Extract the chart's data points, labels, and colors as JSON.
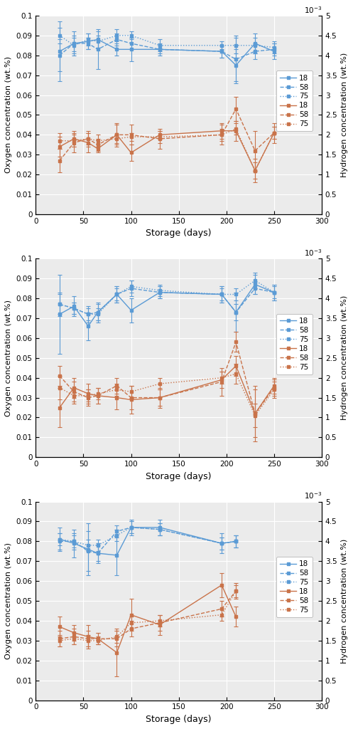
{
  "panels": [
    {
      "o18_x": [
        25,
        40,
        55,
        65,
        85,
        100,
        130,
        195,
        210,
        230,
        250
      ],
      "o18_y": [
        0.082,
        0.086,
        0.087,
        0.088,
        0.083,
        0.083,
        0.083,
        0.082,
        0.075,
        0.086,
        0.082
      ],
      "o18_yerr": [
        0.015,
        0.006,
        0.004,
        0.004,
        0.003,
        0.006,
        0.002,
        0.003,
        0.008,
        0.005,
        0.004
      ],
      "o58_x": [
        25,
        40,
        55,
        65,
        85,
        100,
        130,
        195,
        210,
        230,
        250
      ],
      "o58_y": [
        0.08,
        0.086,
        0.086,
        0.083,
        0.088,
        0.086,
        0.083,
        0.082,
        0.078,
        0.082,
        0.083
      ],
      "o58_yerr": [
        0.008,
        0.004,
        0.003,
        0.01,
        0.003,
        0.003,
        0.003,
        0.003,
        0.012,
        0.004,
        0.003
      ],
      "o75_x": [
        25,
        40,
        55,
        65,
        85,
        100,
        130,
        195,
        210,
        230,
        250
      ],
      "o75_y": [
        0.09,
        0.085,
        0.088,
        0.087,
        0.09,
        0.09,
        0.085,
        0.085,
        0.085,
        0.085,
        0.084
      ],
      "o75_yerr": [
        0.004,
        0.004,
        0.003,
        0.003,
        0.003,
        0.002,
        0.003,
        0.002,
        0.004,
        0.004,
        0.003
      ],
      "h18_x": [
        25,
        40,
        55,
        65,
        85,
        100,
        130,
        195,
        210,
        230,
        250
      ],
      "h18_y": [
        1.7,
        1.9,
        1.8,
        1.65,
        2.0,
        1.55,
        2.0,
        2.1,
        2.1,
        1.1,
        2.05
      ],
      "h18_yerr": [
        0.25,
        0.2,
        0.25,
        0.1,
        0.3,
        0.2,
        0.1,
        0.2,
        0.25,
        0.3,
        0.15
      ],
      "h58_x": [
        25,
        40,
        55,
        65,
        85,
        100,
        130,
        195,
        210,
        230,
        250
      ],
      "h58_y": [
        1.35,
        1.8,
        1.9,
        1.75,
        2.0,
        2.0,
        1.9,
        2.0,
        2.65,
        1.6,
        2.05
      ],
      "h58_yerr": [
        0.3,
        0.25,
        0.2,
        0.15,
        0.25,
        0.25,
        0.25,
        0.25,
        0.3,
        0.5,
        0.25
      ],
      "h75_x": [
        25,
        40,
        55,
        65,
        85,
        100,
        130,
        195,
        210,
        230,
        250
      ],
      "h75_y": [
        1.85,
        1.85,
        1.9,
        1.85,
        1.9,
        1.95,
        1.95,
        2.0,
        2.15,
        1.1,
        2.05
      ],
      "h75_yerr": [
        0.2,
        0.15,
        0.15,
        0.15,
        0.1,
        0.1,
        0.15,
        0.15,
        0.15,
        0.2,
        0.15
      ]
    },
    {
      "o18_x": [
        25,
        40,
        55,
        65,
        85,
        100,
        130,
        195,
        210,
        230,
        250
      ],
      "o18_y": [
        0.072,
        0.076,
        0.066,
        0.073,
        0.082,
        0.074,
        0.083,
        0.082,
        0.073,
        0.087,
        0.083
      ],
      "o18_yerr": [
        0.02,
        0.005,
        0.007,
        0.005,
        0.004,
        0.006,
        0.003,
        0.004,
        0.01,
        0.005,
        0.004
      ],
      "o58_x": [
        25,
        40,
        55,
        65,
        85,
        100,
        130,
        195,
        210,
        230,
        250
      ],
      "o58_y": [
        0.077,
        0.075,
        0.072,
        0.073,
        0.082,
        0.085,
        0.083,
        0.082,
        0.073,
        0.085,
        0.083
      ],
      "o58_yerr": [
        0.006,
        0.003,
        0.004,
        0.004,
        0.004,
        0.004,
        0.003,
        0.004,
        0.004,
        0.003,
        0.004
      ],
      "o75_x": [
        25,
        40,
        55,
        65,
        85,
        100,
        130,
        195,
        210,
        230,
        250
      ],
      "o75_y": [
        0.077,
        0.075,
        0.072,
        0.072,
        0.082,
        0.086,
        0.084,
        0.082,
        0.082,
        0.089,
        0.083
      ],
      "o75_yerr": [
        0.005,
        0.003,
        0.003,
        0.003,
        0.003,
        0.003,
        0.003,
        0.003,
        0.003,
        0.004,
        0.003
      ],
      "h18_x": [
        25,
        40,
        55,
        65,
        85,
        100,
        130,
        195,
        210,
        230,
        250
      ],
      "h18_y": [
        1.25,
        1.75,
        1.6,
        1.55,
        1.5,
        1.45,
        1.5,
        1.95,
        2.3,
        1.1,
        1.8
      ],
      "h18_yerr": [
        0.5,
        0.25,
        0.25,
        0.2,
        0.3,
        0.35,
        0.2,
        0.2,
        0.25,
        0.7,
        0.2
      ],
      "h58_x": [
        25,
        40,
        55,
        65,
        85,
        100,
        130,
        195,
        210,
        230,
        250
      ],
      "h58_y": [
        2.05,
        1.65,
        1.5,
        1.55,
        1.8,
        1.5,
        1.5,
        1.9,
        2.9,
        1.1,
        1.75
      ],
      "h58_yerr": [
        0.25,
        0.25,
        0.2,
        0.2,
        0.2,
        0.3,
        0.25,
        0.35,
        0.25,
        0.6,
        0.2
      ],
      "h75_x": [
        25,
        40,
        55,
        65,
        85,
        100,
        130,
        195,
        210,
        230,
        250
      ],
      "h75_y": [
        1.75,
        1.55,
        1.55,
        1.6,
        1.7,
        1.65,
        1.85,
        2.0,
        2.1,
        1.05,
        1.7
      ],
      "h75_yerr": [
        0.3,
        0.2,
        0.15,
        0.15,
        0.15,
        0.15,
        0.15,
        0.15,
        0.25,
        0.3,
        0.2
      ]
    },
    {
      "o18_x": [
        25,
        40,
        55,
        65,
        85,
        100,
        130,
        195,
        210
      ],
      "o18_y": [
        0.081,
        0.079,
        0.076,
        0.074,
        0.073,
        0.087,
        0.087,
        0.079,
        0.08
      ],
      "o18_yerr": [
        0.006,
        0.007,
        0.013,
        0.005,
        0.01,
        0.004,
        0.004,
        0.005,
        0.003
      ],
      "o58_x": [
        25,
        40,
        55,
        65,
        85,
        100,
        130,
        195,
        210
      ],
      "o58_y": [
        0.08,
        0.08,
        0.075,
        0.074,
        0.085,
        0.087,
        0.086,
        0.079,
        0.08
      ],
      "o58_yerr": [
        0.004,
        0.004,
        0.01,
        0.004,
        0.003,
        0.003,
        0.003,
        0.003,
        0.003
      ],
      "o75_x": [
        25,
        40,
        55,
        65,
        85,
        100,
        130,
        195,
        210
      ],
      "o75_y": [
        0.081,
        0.08,
        0.078,
        0.078,
        0.083,
        0.087,
        0.086,
        0.079,
        0.08
      ],
      "o75_yerr": [
        0.003,
        0.003,
        0.003,
        0.003,
        0.003,
        0.003,
        0.003,
        0.003,
        0.003
      ],
      "h18_x": [
        25,
        40,
        55,
        65,
        85,
        100,
        130,
        195,
        210
      ],
      "h18_y": [
        1.85,
        1.7,
        1.6,
        1.55,
        1.2,
        2.15,
        1.9,
        2.9,
        2.1
      ],
      "h18_yerr": [
        0.25,
        0.2,
        0.3,
        0.15,
        0.6,
        0.4,
        0.25,
        0.3,
        0.25
      ],
      "h58_x": [
        25,
        40,
        55,
        65,
        85,
        100,
        130,
        195,
        210
      ],
      "h58_y": [
        1.55,
        1.6,
        1.55,
        1.55,
        1.55,
        1.8,
        1.95,
        2.3,
        2.75
      ],
      "h58_yerr": [
        0.2,
        0.2,
        0.2,
        0.15,
        0.2,
        0.2,
        0.2,
        0.2,
        0.2
      ],
      "h75_x": [
        25,
        40,
        55,
        65,
        85,
        100,
        130,
        195,
        210
      ],
      "h75_y": [
        1.5,
        1.55,
        1.5,
        1.5,
        1.6,
        1.95,
        2.0,
        2.15,
        2.75
      ],
      "h75_yerr": [
        0.15,
        0.15,
        0.15,
        0.1,
        0.15,
        0.15,
        0.15,
        0.15,
        0.15
      ]
    }
  ],
  "o_color": "#5B9BD5",
  "h_color": "#C9734A",
  "bg_color": "#EBEBEB",
  "ylabel_left": "Oxygen concentration (wt.%)",
  "ylabel_right": "Hydrogen concentration (wt.%)",
  "xlabel": "Storage (days)",
  "ylim_left": [
    0,
    0.1
  ],
  "ylim_right": [
    0,
    5
  ],
  "xlim": [
    0,
    300
  ],
  "yticks_left": [
    0,
    0.01,
    0.02,
    0.03,
    0.04,
    0.05,
    0.06,
    0.07,
    0.08,
    0.09,
    0.1
  ],
  "ytick_labels_left": [
    "0",
    "0.01",
    "0.02",
    "0.03",
    "0.04",
    "0.05",
    "0.06",
    "0.07",
    "0.08",
    "0.09",
    "0.1"
  ],
  "yticks_right": [
    0,
    0.5,
    1.0,
    1.5,
    2.0,
    2.5,
    3.0,
    3.5,
    4.0,
    4.5,
    5.0
  ],
  "ytick_labels_right": [
    "0",
    "0.5",
    "1",
    "1.5",
    "2",
    "2.5",
    "3",
    "3.5",
    "4",
    "4.5",
    "5"
  ],
  "xticks": [
    0,
    50,
    100,
    150,
    200,
    250,
    300
  ],
  "legend_labels": [
    "18",
    "58",
    "75",
    "18",
    "58",
    "75"
  ]
}
